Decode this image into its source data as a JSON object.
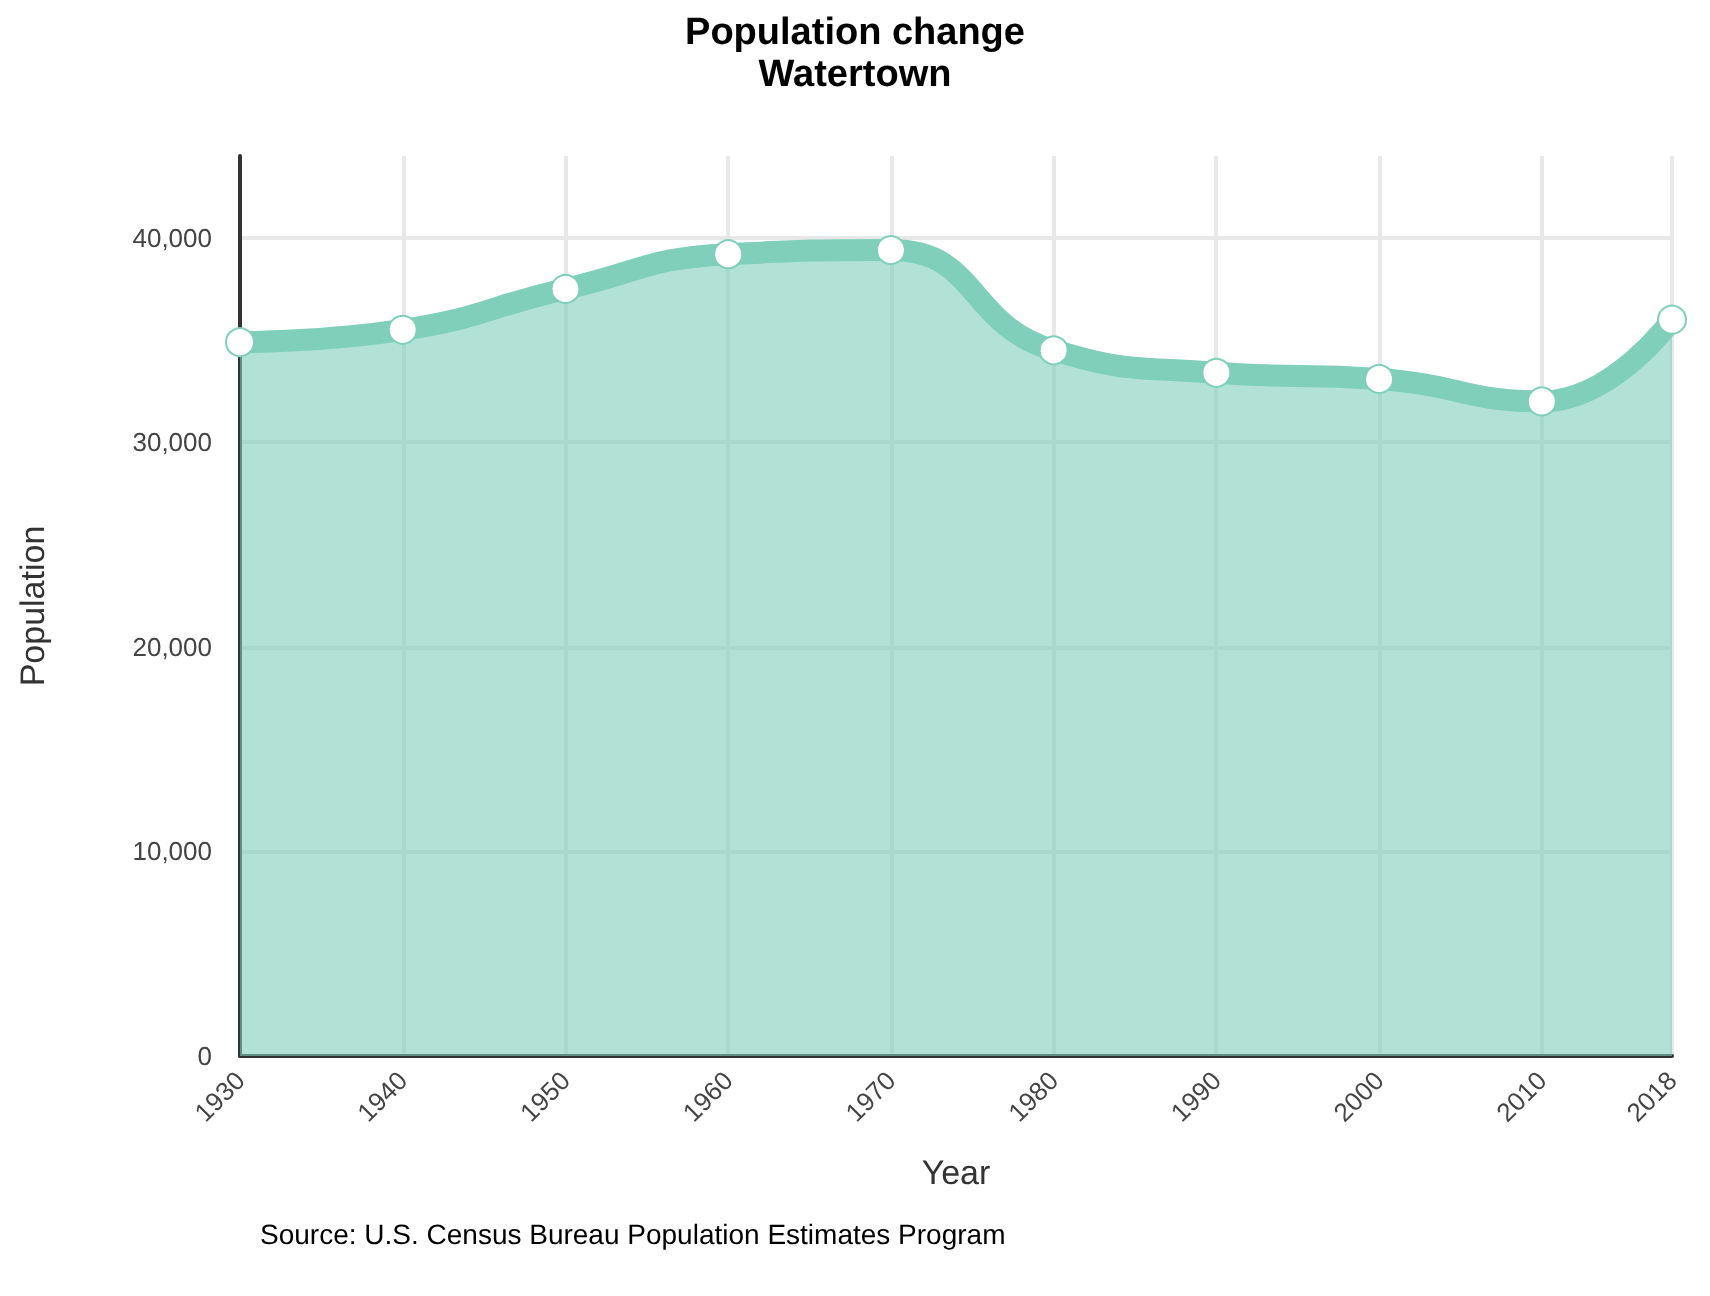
{
  "chart_data": {
    "type": "area",
    "title": "Population change",
    "subtitle": "Watertown",
    "xlabel": "Year",
    "ylabel": "Population",
    "annotations": [
      "Source: U.S. Census Bureau Population Estimates Program"
    ],
    "x": [
      1930,
      1940,
      1950,
      1960,
      1970,
      1980,
      1990,
      2000,
      2010,
      2018
    ],
    "series": [
      {
        "color": "#7fcfbb",
        "values": [
          34900,
          35500,
          37500,
          39200,
          39400,
          34500,
          33400,
          33100,
          32000,
          36000
        ]
      }
    ],
    "xlim": [
      1930,
      2018
    ],
    "xticks": [
      1930,
      1940,
      1950,
      1960,
      1970,
      1980,
      1990,
      2000,
      2010,
      2018
    ],
    "ylim": [
      0,
      44000
    ],
    "yticks": [
      0,
      {
        "value": 10000,
        "label": "10,000"
      },
      {
        "value": 20000,
        "label": "20,000"
      },
      {
        "value": 30000,
        "label": "30,000"
      },
      {
        "value": 40000,
        "label": "40,000"
      }
    ],
    "grid": true,
    "marker": "circle",
    "line_style": "solid"
  }
}
